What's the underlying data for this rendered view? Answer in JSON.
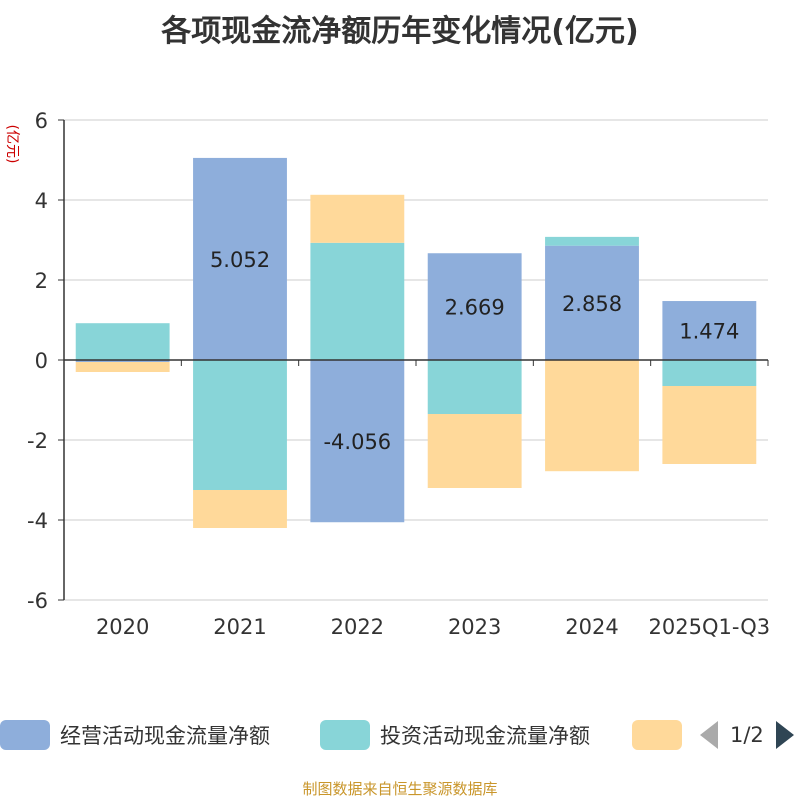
{
  "chart_data": {
    "type": "bar",
    "stacked": true,
    "title": "各项现金流净额历年变化情况(亿元)",
    "ylabel": "(亿元)",
    "ylim": [
      -6,
      6
    ],
    "yticks": [
      -6,
      -4,
      -2,
      0,
      2,
      4,
      6
    ],
    "categories": [
      "2020",
      "2021",
      "2022",
      "2023",
      "2024",
      "2025Q1-Q3"
    ],
    "series": [
      {
        "name": "经营活动现金流量净额",
        "color": "#8eaedb",
        "values": [
          -0.05,
          5.052,
          -4.056,
          2.669,
          2.858,
          1.474
        ],
        "labels": [
          "",
          "5.052",
          "-4.056",
          "2.669",
          "2.858",
          "1.474"
        ]
      },
      {
        "name": "投资活动现金流量净额",
        "color": "#88d5d8",
        "values": [
          0.92,
          -3.25,
          2.93,
          -1.35,
          0.22,
          -0.65
        ]
      },
      {
        "name": "",
        "color": "#ffd99a",
        "values": [
          -0.25,
          -0.95,
          1.2,
          -1.85,
          -2.78,
          -1.95
        ]
      }
    ],
    "legend_position": "bottom",
    "grid": true
  },
  "legend_pager": "1/2",
  "source": "制图数据来自恒生聚源数据库"
}
